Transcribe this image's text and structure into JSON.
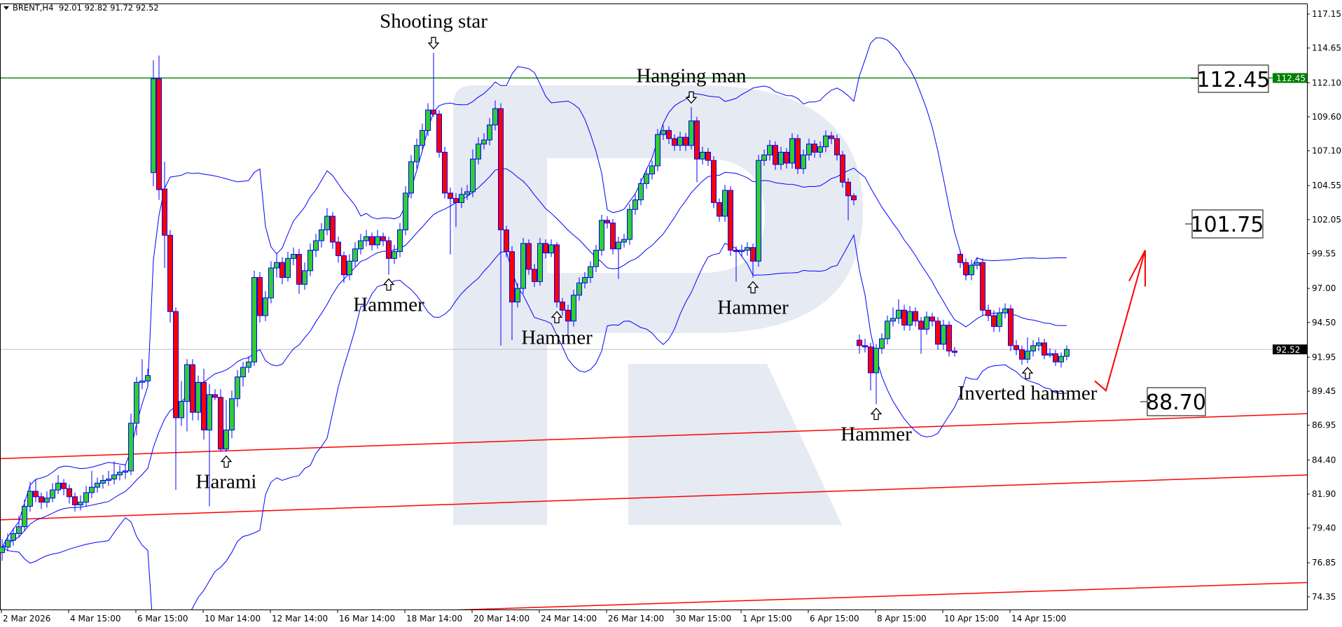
{
  "header": {
    "symbol": "BRENT,H4",
    "ohlc": "92.01 92.82 91.72 92.52"
  },
  "colors": {
    "bull": "#32cd32",
    "bear": "#ff0000",
    "outline": "#0000ff",
    "bands": "#0000ff",
    "resistance": "#008000",
    "channel": "#ff0000",
    "current_price": "#c0c0c0",
    "watermark": "#e6eaf3"
  },
  "chart_data": {
    "type": "candlestick",
    "title": "",
    "instrument": "BRENT",
    "timeframe": "H4",
    "ylim": [
      73.4,
      117.9
    ],
    "y_ticks": [
      "117.15",
      "114.65",
      "112.10",
      "109.60",
      "107.10",
      "104.55",
      "102.05",
      "99.55",
      "97.00",
      "94.50",
      "91.95",
      "89.45",
      "86.95",
      "84.40",
      "81.90",
      "79.40",
      "76.85",
      "74.35"
    ],
    "x_ticks": [
      {
        "bar": 0,
        "label": "2 Mar 2026"
      },
      {
        "bar": 12,
        "label": "4 Mar 15:00"
      },
      {
        "bar": 24,
        "label": "6 Mar 15:00"
      },
      {
        "bar": 36,
        "label": "10 Mar 14:00"
      },
      {
        "bar": 48,
        "label": "12 Mar 14:00"
      },
      {
        "bar": 60,
        "label": "16 Mar 14:00"
      },
      {
        "bar": 72,
        "label": "18 Mar 14:00"
      },
      {
        "bar": 84,
        "label": "20 Mar 14:00"
      },
      {
        "bar": 96,
        "label": "24 Mar 14:00"
      },
      {
        "bar": 108,
        "label": "26 Mar 14:00"
      },
      {
        "bar": 120,
        "label": "30 Mar 15:00"
      },
      {
        "bar": 132,
        "label": "1 Apr 15:00"
      },
      {
        "bar": 144,
        "label": "6 Apr 15:00"
      },
      {
        "bar": 156,
        "label": "8 Apr 15:00"
      },
      {
        "bar": 168,
        "label": "10 Apr 15:00"
      },
      {
        "bar": 180,
        "label": "14 Apr 15:00"
      }
    ],
    "candles_ohlc": [
      [
        77.6,
        78.6,
        77.0,
        78.0
      ],
      [
        78.0,
        79.0,
        77.7,
        78.5
      ],
      [
        78.5,
        79.4,
        78.1,
        79.0
      ],
      [
        79.0,
        80.3,
        78.7,
        79.5
      ],
      [
        79.5,
        81.5,
        79.2,
        81.0
      ],
      [
        81.0,
        82.8,
        80.6,
        82.1
      ],
      [
        82.1,
        83.0,
        81.3,
        81.7
      ],
      [
        81.7,
        82.0,
        80.8,
        81.3
      ],
      [
        81.3,
        82.1,
        80.9,
        81.6
      ],
      [
        81.6,
        82.7,
        81.3,
        82.2
      ],
      [
        82.2,
        83.3,
        81.9,
        82.7
      ],
      [
        82.7,
        83.0,
        81.8,
        82.3
      ],
      [
        82.3,
        82.6,
        81.2,
        81.7
      ],
      [
        81.7,
        82.0,
        80.6,
        81.1
      ],
      [
        81.1,
        81.8,
        80.7,
        81.3
      ],
      [
        81.3,
        82.5,
        81.0,
        82.0
      ],
      [
        82.0,
        83.6,
        81.6,
        82.4
      ],
      [
        82.4,
        83.1,
        82.0,
        82.7
      ],
      [
        82.7,
        83.3,
        82.3,
        82.9
      ],
      [
        82.9,
        83.6,
        82.5,
        83.0
      ],
      [
        83.0,
        84.3,
        82.6,
        83.3
      ],
      [
        83.3,
        84.0,
        82.9,
        83.5
      ],
      [
        83.5,
        84.1,
        83.0,
        83.6
      ],
      [
        83.6,
        87.8,
        83.3,
        87.1
      ],
      [
        87.1,
        90.5,
        86.2,
        90.1
      ],
      [
        90.1,
        91.8,
        89.6,
        90.2
      ],
      [
        90.2,
        91.1,
        89.8,
        90.6
      ],
      [
        105.5,
        113.75,
        104.5,
        112.4
      ],
      [
        112.4,
        114.1,
        103.5,
        104.25
      ],
      [
        104.3,
        106.3,
        98.5,
        100.9
      ],
      [
        100.9,
        101.3,
        94.5,
        95.3
      ],
      [
        95.3,
        95.6,
        82.2,
        87.5
      ],
      [
        87.5,
        90.2,
        86.9,
        88.7
      ],
      [
        88.7,
        91.8,
        86.5,
        91.4
      ],
      [
        91.4,
        91.8,
        87.3,
        87.9
      ],
      [
        87.9,
        90.6,
        87.3,
        90.1
      ],
      [
        90.1,
        91.1,
        85.9,
        86.6
      ],
      [
        86.6,
        90.0,
        81.0,
        89.2
      ],
      [
        89.2,
        89.6,
        88.8,
        89.0
      ],
      [
        89.0,
        89.6,
        85.0,
        85.2
      ],
      [
        85.2,
        88.8,
        85.0,
        86.6
      ],
      [
        86.6,
        89.5,
        86.0,
        88.9
      ],
      [
        88.9,
        91.0,
        88.3,
        90.5
      ],
      [
        90.5,
        91.6,
        89.8,
        91.2
      ],
      [
        91.2,
        92.0,
        90.8,
        91.6
      ],
      [
        91.6,
        98.3,
        91.3,
        97.8
      ],
      [
        97.8,
        98.2,
        94.5,
        95.0
      ],
      [
        95.0,
        96.8,
        94.6,
        96.3
      ],
      [
        96.3,
        99.0,
        95.9,
        98.5
      ],
      [
        98.5,
        99.6,
        97.8,
        98.9
      ],
      [
        98.9,
        99.3,
        97.3,
        97.8
      ],
      [
        97.8,
        99.7,
        97.5,
        99.2
      ],
      [
        99.2,
        100.0,
        98.7,
        99.5
      ],
      [
        99.5,
        99.9,
        96.6,
        97.3
      ],
      [
        97.3,
        98.9,
        96.9,
        98.3
      ],
      [
        98.3,
        100.3,
        97.9,
        99.8
      ],
      [
        99.8,
        101.0,
        99.3,
        100.5
      ],
      [
        100.5,
        101.8,
        100.0,
        101.3
      ],
      [
        101.3,
        102.9,
        100.9,
        102.3
      ],
      [
        102.3,
        102.6,
        99.9,
        100.4
      ],
      [
        100.4,
        100.8,
        98.9,
        99.4
      ],
      [
        99.4,
        99.7,
        97.4,
        98.0
      ],
      [
        98.0,
        99.5,
        97.6,
        99.0
      ],
      [
        99.0,
        100.4,
        98.6,
        99.9
      ],
      [
        99.9,
        101.0,
        99.5,
        100.5
      ],
      [
        100.5,
        101.3,
        100.1,
        100.8
      ],
      [
        100.8,
        101.1,
        99.8,
        100.2
      ],
      [
        100.2,
        101.3,
        99.9,
        100.8
      ],
      [
        100.8,
        101.1,
        100.1,
        100.5
      ],
      [
        100.5,
        100.8,
        98.0,
        99.2
      ],
      [
        99.2,
        100.2,
        98.8,
        99.7
      ],
      [
        99.7,
        101.8,
        99.3,
        101.3
      ],
      [
        101.3,
        104.5,
        100.9,
        104.0
      ],
      [
        104.0,
        106.8,
        103.6,
        106.3
      ],
      [
        106.3,
        108.0,
        105.8,
        107.5
      ],
      [
        107.5,
        109.1,
        107.1,
        108.6
      ],
      [
        108.6,
        110.6,
        108.2,
        110.1
      ],
      [
        110.1,
        114.3,
        109.6,
        109.8
      ],
      [
        109.8,
        110.1,
        106.6,
        107.0
      ],
      [
        107.0,
        107.4,
        103.6,
        104.0
      ],
      [
        104.0,
        104.4,
        99.5,
        103.6
      ],
      [
        103.6,
        104.0,
        101.5,
        103.3
      ],
      [
        103.3,
        104.4,
        102.9,
        103.9
      ],
      [
        103.9,
        104.6,
        103.5,
        104.1
      ],
      [
        104.1,
        107.2,
        103.7,
        106.5
      ],
      [
        106.5,
        108.1,
        106.1,
        107.6
      ],
      [
        107.6,
        108.4,
        107.2,
        107.9
      ],
      [
        107.9,
        109.5,
        107.5,
        109.0
      ],
      [
        109.0,
        110.8,
        108.6,
        110.2
      ],
      [
        110.2,
        110.6,
        92.8,
        101.3
      ],
      [
        101.3,
        101.6,
        99.3,
        99.7
      ],
      [
        99.7,
        100.1,
        93.2,
        96.0
      ],
      [
        96.0,
        97.4,
        95.6,
        97.0
      ],
      [
        97.0,
        100.7,
        96.6,
        100.3
      ],
      [
        100.3,
        100.6,
        98.0,
        98.4
      ],
      [
        98.4,
        98.8,
        97.1,
        97.5
      ],
      [
        97.5,
        100.7,
        97.2,
        100.3
      ],
      [
        100.3,
        100.6,
        99.2,
        99.6
      ],
      [
        99.6,
        100.6,
        99.3,
        100.2
      ],
      [
        100.2,
        100.4,
        95.6,
        96.0
      ],
      [
        96.0,
        96.3,
        95.0,
        95.4
      ],
      [
        95.4,
        95.8,
        93.0,
        94.6
      ],
      [
        94.6,
        96.9,
        94.2,
        96.5
      ],
      [
        96.5,
        97.8,
        96.1,
        97.4
      ],
      [
        97.4,
        98.2,
        97.0,
        97.8
      ],
      [
        97.8,
        99.0,
        97.4,
        98.6
      ],
      [
        98.6,
        100.2,
        98.2,
        99.8
      ],
      [
        99.8,
        102.4,
        99.4,
        102.0
      ],
      [
        102.0,
        102.3,
        101.4,
        101.8
      ],
      [
        101.8,
        102.1,
        99.5,
        99.9
      ],
      [
        99.9,
        100.8,
        97.7,
        100.4
      ],
      [
        100.4,
        101.0,
        100.0,
        100.6
      ],
      [
        100.6,
        103.2,
        100.2,
        102.8
      ],
      [
        102.8,
        103.9,
        102.4,
        103.5
      ],
      [
        103.5,
        105.1,
        103.1,
        104.7
      ],
      [
        104.7,
        105.8,
        104.3,
        105.4
      ],
      [
        105.4,
        106.4,
        105.0,
        106.0
      ],
      [
        106.0,
        108.7,
        105.6,
        108.3
      ],
      [
        108.3,
        109.0,
        107.9,
        108.6
      ],
      [
        108.6,
        108.9,
        107.6,
        108.0
      ],
      [
        108.0,
        108.3,
        107.1,
        107.5
      ],
      [
        107.5,
        108.5,
        107.1,
        108.1
      ],
      [
        108.1,
        108.4,
        107.1,
        107.5
      ],
      [
        107.5,
        110.3,
        107.2,
        109.3
      ],
      [
        109.3,
        109.6,
        104.8,
        106.5
      ],
      [
        106.5,
        107.4,
        106.1,
        107.0
      ],
      [
        107.0,
        107.3,
        106.0,
        106.4
      ],
      [
        106.4,
        106.7,
        102.9,
        103.3
      ],
      [
        103.3,
        103.6,
        101.9,
        102.3
      ],
      [
        102.3,
        104.6,
        101.9,
        104.2
      ],
      [
        104.2,
        104.5,
        99.4,
        99.8
      ],
      [
        99.8,
        100.1,
        97.5,
        99.7
      ],
      [
        99.7,
        100.2,
        99.3,
        99.8
      ],
      [
        99.8,
        100.4,
        99.4,
        100.0
      ],
      [
        100.0,
        100.3,
        97.8,
        99.0
      ],
      [
        99.0,
        106.8,
        98.6,
        106.4
      ],
      [
        106.4,
        107.2,
        106.0,
        106.8
      ],
      [
        106.8,
        107.9,
        106.4,
        107.5
      ],
      [
        107.5,
        107.8,
        105.7,
        106.1
      ],
      [
        106.1,
        107.4,
        105.7,
        107.0
      ],
      [
        107.0,
        107.3,
        105.8,
        106.2
      ],
      [
        106.2,
        108.4,
        105.8,
        108.0
      ],
      [
        108.0,
        108.3,
        105.4,
        105.8
      ],
      [
        105.8,
        107.2,
        105.4,
        106.8
      ],
      [
        106.8,
        108.0,
        106.4,
        107.6
      ],
      [
        107.6,
        107.9,
        106.6,
        107.0
      ],
      [
        107.0,
        107.8,
        106.6,
        107.4
      ],
      [
        107.4,
        108.6,
        107.0,
        108.2
      ],
      [
        108.2,
        108.5,
        107.6,
        108.0
      ],
      [
        108.0,
        108.3,
        106.4,
        106.8
      ],
      [
        106.8,
        107.1,
        104.4,
        104.8
      ],
      [
        104.8,
        105.1,
        102.0,
        103.8
      ],
      [
        103.8,
        104.0,
        103.1,
        103.5
      ],
      [
        93.2,
        93.6,
        92.2,
        92.8
      ],
      [
        92.8,
        93.3,
        92.3,
        92.7
      ],
      [
        92.7,
        93.0,
        89.5,
        90.8
      ],
      [
        90.8,
        92.9,
        88.5,
        92.6
      ],
      [
        92.6,
        93.7,
        92.2,
        93.3
      ],
      [
        93.3,
        95.0,
        92.9,
        94.6
      ],
      [
        94.6,
        95.6,
        94.2,
        94.8
      ],
      [
        94.8,
        96.2,
        94.4,
        95.4
      ],
      [
        95.4,
        95.8,
        93.9,
        94.3
      ],
      [
        94.3,
        95.7,
        93.9,
        95.3
      ],
      [
        95.3,
        95.6,
        94.2,
        94.6
      ],
      [
        94.6,
        94.9,
        92.2,
        94.0
      ],
      [
        94.0,
        95.3,
        93.6,
        94.9
      ],
      [
        94.9,
        95.2,
        94.2,
        94.6
      ],
      [
        94.6,
        94.9,
        92.5,
        92.9
      ],
      [
        92.9,
        94.7,
        92.5,
        94.3
      ],
      [
        94.3,
        94.6,
        92.0,
        92.4
      ],
      [
        92.4,
        92.7,
        92.0,
        92.3
      ],
      [
        99.5,
        99.8,
        98.5,
        98.9
      ],
      [
        98.9,
        99.2,
        97.6,
        98.0
      ],
      [
        98.0,
        99.1,
        97.6,
        98.7
      ],
      [
        98.7,
        99.3,
        98.4,
        98.9
      ],
      [
        98.9,
        99.2,
        95.0,
        95.4
      ],
      [
        95.4,
        95.8,
        94.6,
        95.0
      ],
      [
        95.0,
        95.4,
        93.8,
        94.2
      ],
      [
        94.2,
        95.6,
        93.8,
        95.2
      ],
      [
        95.2,
        95.9,
        94.8,
        95.5
      ],
      [
        95.5,
        95.8,
        92.4,
        92.8
      ],
      [
        92.8,
        93.2,
        92.1,
        92.5
      ],
      [
        92.5,
        92.8,
        91.4,
        91.8
      ],
      [
        91.8,
        93.4,
        91.5,
        92.4
      ],
      [
        92.4,
        93.2,
        92.0,
        92.8
      ],
      [
        92.8,
        93.4,
        92.4,
        93.0
      ],
      [
        93.0,
        93.3,
        91.8,
        92.1
      ],
      [
        92.1,
        92.6,
        91.9,
        92.2
      ],
      [
        92.2,
        92.5,
        91.3,
        91.6
      ],
      [
        91.6,
        92.3,
        91.2,
        92.01
      ],
      [
        92.01,
        92.82,
        91.72,
        92.52
      ]
    ],
    "indicator": {
      "type": "bollinger_bands",
      "period": 20,
      "deviation": 2
    },
    "resistance_level": {
      "price": 112.45,
      "label": "112.45"
    },
    "current_price": {
      "price": 92.52,
      "label": "92.52"
    },
    "channel_lines": [
      {
        "left_price": 84.5,
        "right_price": 87.8
      },
      {
        "left_price": 80.0,
        "right_price": 83.3
      },
      {
        "left_price": 72.3,
        "right_price": 75.4
      }
    ],
    "level_labels": [
      "112.45",
      "101.75",
      "88.70"
    ],
    "annotations": [
      {
        "text": "Shooting star",
        "bar": 77,
        "direction": "down"
      },
      {
        "text": "Hanging man",
        "bar": 123,
        "direction": "down"
      },
      {
        "text": "Harami",
        "bar": 40,
        "direction": "up"
      },
      {
        "text": "Hammer",
        "bar": 69,
        "direction": "up"
      },
      {
        "text": "Hammer",
        "bar": 99,
        "direction": "up"
      },
      {
        "text": "Hammer",
        "bar": 134,
        "direction": "up"
      },
      {
        "text": "Hammer",
        "bar": 156,
        "direction": "up"
      },
      {
        "text": "Inverted hammer",
        "bar": 183,
        "direction": "up"
      }
    ],
    "forecast_arrow": {
      "from_price": 90.2,
      "via_price": 89.5,
      "to_price": 99.8
    }
  }
}
